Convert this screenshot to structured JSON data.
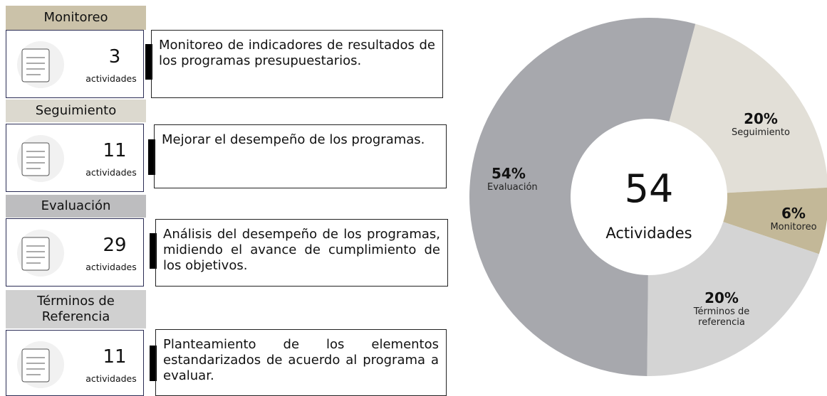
{
  "panels": [
    {
      "title": "Monitoreo",
      "count": 3,
      "unit": "actividades",
      "description": "Monitoreo de indicadores de resultados de los programas presupuestarios."
    },
    {
      "title": "Seguimiento",
      "count": 11,
      "unit": "actividades",
      "description": "Mejorar el desempeño de los programas."
    },
    {
      "title": "Evaluación",
      "count": 29,
      "unit": "actividades",
      "description": "Análisis del desempeño de los programas, midiendo el avance de cumplimiento de los objetivos."
    },
    {
      "title": "Términos de Referencia",
      "count": 11,
      "unit": "actividades",
      "description": "Planteamiento de los elementos estandarizados de acuerdo al programa a evaluar."
    }
  ],
  "chart_data": {
    "type": "donut",
    "center_value": 54,
    "center_label": "Actividades",
    "categories": [
      "Seguimiento",
      "Monitoreo",
      "Términos de referencia",
      "Evaluación"
    ],
    "values": [
      20,
      6,
      20,
      54
    ],
    "value_labels": [
      "20%",
      "6%",
      "20%",
      "54%"
    ],
    "colors": [
      "#e2dfd7",
      "#c3b898",
      "#d4d4d4",
      "#a7a8ad"
    ]
  }
}
